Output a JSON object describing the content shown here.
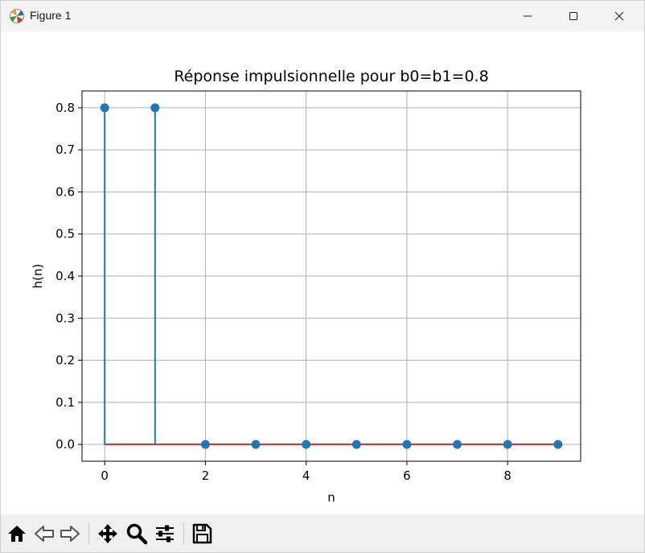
{
  "window": {
    "title": "Figure 1",
    "icon": "matplotlib-icon",
    "controls": [
      "minimize-icon",
      "maximize-icon",
      "close-icon"
    ]
  },
  "toolbar": {
    "tools": [
      "home-icon",
      "back-arrow-icon",
      "forward-arrow-icon",
      "pan-icon",
      "zoom-icon",
      "configure-subplots-icon",
      "save-icon"
    ]
  },
  "colors": {
    "stem": "#1f77b4",
    "baseline": "#d62728",
    "grid": "#b0b0b0"
  },
  "chart_data": {
    "type": "stem",
    "title": "Réponse impulsionnelle pour b0=b1=0.8",
    "xlabel": "n",
    "ylabel": "h(n)",
    "x": [
      0,
      1,
      2,
      3,
      4,
      5,
      6,
      7,
      8,
      9
    ],
    "y": [
      0.8,
      0.8,
      0,
      0,
      0,
      0,
      0,
      0,
      0,
      0
    ],
    "xlim": [
      -0.45,
      9.45
    ],
    "ylim": [
      -0.04,
      0.84
    ],
    "xticks": [
      0,
      2,
      4,
      6,
      8
    ],
    "xtick_labels": [
      "0",
      "2",
      "4",
      "6",
      "8"
    ],
    "yticks": [
      0.0,
      0.1,
      0.2,
      0.3,
      0.4,
      0.5,
      0.6,
      0.7,
      0.8
    ],
    "ytick_labels": [
      "0.0",
      "0.1",
      "0.2",
      "0.3",
      "0.4",
      "0.5",
      "0.6",
      "0.7",
      "0.8"
    ],
    "grid": true,
    "baseline": 0
  }
}
